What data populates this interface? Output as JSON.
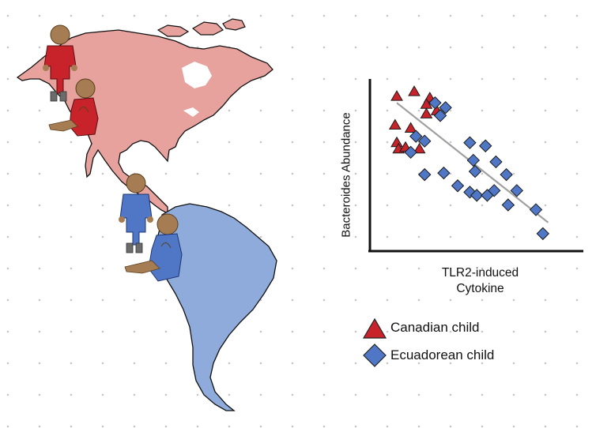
{
  "figure": {
    "y_axis_label": "Bacteroides Abundance",
    "x_axis_label_line1": "TLR2-induced",
    "x_axis_label_line2": "Cytokine"
  },
  "legend": {
    "canadian": "Canadian child",
    "ecuadorean": "Ecuadorean child"
  },
  "colors": {
    "north_america": "#e7a29e",
    "south_america": "#8fabdc",
    "canadian_marker": "#c8232a",
    "ecuadorean_marker": "#4f77c6",
    "trend_line": "#a0a0a0",
    "dot_grid": "#c7c7c7"
  },
  "icons": [
    "canadian-child-standing-icon",
    "canadian-child-sitting-icon",
    "ecuadorean-child-standing-icon",
    "ecuadorean-child-sitting-icon"
  ],
  "chart_data": {
    "type": "scatter",
    "xlabel": "TLR2-induced Cytokine",
    "ylabel": "Bacteroides Abundance",
    "xlim": [
      0,
      10
    ],
    "ylim": [
      0,
      10
    ],
    "ticks": "none",
    "legend_position": "below plot",
    "trendline": {
      "x": [
        1.0,
        9.7
      ],
      "y": [
        8.9,
        1.4
      ],
      "color": "#a0a0a0"
    },
    "series": [
      {
        "name": "Canadian child",
        "marker": "triangle",
        "color": "#c8232a",
        "x": [
          1.0,
          2.0,
          2.9,
          2.7,
          2.7,
          3.3,
          0.9,
          1.8,
          1.0,
          1.1,
          1.5,
          2.3
        ],
        "y": [
          9.3,
          9.6,
          9.2,
          8.8,
          8.2,
          8.4,
          7.5,
          7.3,
          6.4,
          6.0,
          6.1,
          6.0
        ]
      },
      {
        "name": "Ecuadorean child",
        "marker": "diamond",
        "color": "#4f77c6",
        "x": [
          3.2,
          3.8,
          3.5,
          2.1,
          2.6,
          1.8,
          5.2,
          6.1,
          5.4,
          6.7,
          5.5,
          7.3,
          2.6,
          3.7,
          4.5,
          6.6,
          5.2,
          5.6,
          6.2,
          7.9,
          7.4,
          9.0,
          9.4
        ],
        "y": [
          8.9,
          8.6,
          8.1,
          6.8,
          6.5,
          5.8,
          6.4,
          6.2,
          5.3,
          5.2,
          4.6,
          4.4,
          4.4,
          4.5,
          3.7,
          3.4,
          3.3,
          3.1,
          3.1,
          3.4,
          2.5,
          2.2,
          0.7
        ]
      }
    ]
  }
}
